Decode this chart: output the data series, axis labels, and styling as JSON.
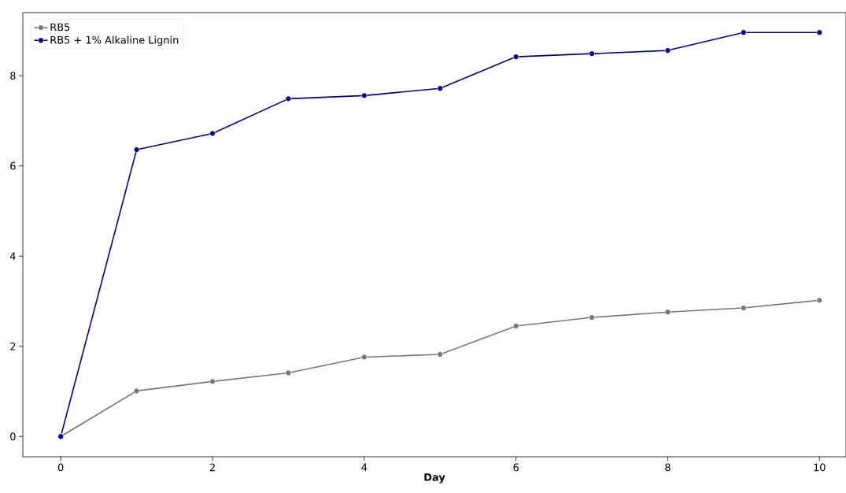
{
  "chart_data": {
    "type": "line",
    "xlabel": "Day",
    "x": [
      0,
      1,
      2,
      3,
      4,
      5,
      6,
      7,
      8,
      9,
      10
    ],
    "series": [
      {
        "name": "RB5",
        "color": "#777777",
        "values": [
          0,
          1.01,
          1.22,
          1.41,
          1.76,
          1.82,
          2.45,
          2.64,
          2.76,
          2.85,
          3.02
        ]
      },
      {
        "name": "RB5 + 1% Alkaline Lignin",
        "color": "#00008b",
        "values": [
          0,
          6.36,
          6.72,
          7.49,
          7.56,
          7.72,
          8.42,
          8.49,
          8.56,
          8.96,
          8.96
        ]
      }
    ],
    "xlim": [
      -0.5,
      10.35
    ],
    "ylim": [
      -0.45,
      9.4
    ],
    "xticks": [
      0,
      2,
      4,
      6,
      8,
      10
    ],
    "yticks": [
      0,
      2,
      4,
      6,
      8
    ],
    "grid": false,
    "legend": "top left",
    "marker": "circle",
    "line_style": "solid"
  }
}
